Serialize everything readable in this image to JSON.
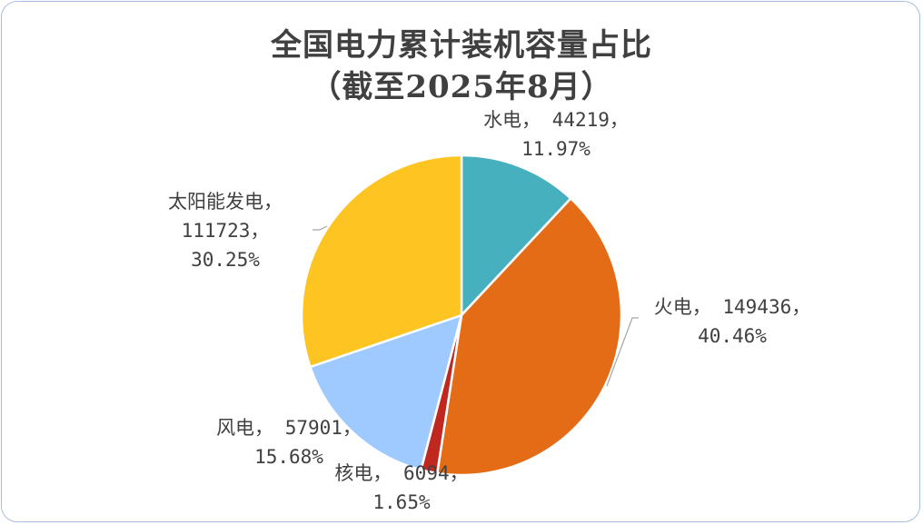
{
  "title_line1": "全国电力累计装机容量占比",
  "title_line2": "（截至2025年8月）",
  "chart_data": {
    "type": "pie",
    "title": "全国电力累计装机容量占比（截至2025年8月）",
    "unit": "",
    "slices": [
      {
        "label": "水电",
        "value": 44219,
        "percent": "11.97%",
        "color": "#46b0be"
      },
      {
        "label": "火电",
        "value": 149436,
        "percent": "40.46%",
        "color": "#e46c17"
      },
      {
        "label": "核电",
        "value": 6094,
        "percent": "1.65%",
        "color": "#c0271f"
      },
      {
        "label": "风电",
        "value": 57901,
        "percent": "15.68%",
        "color": "#9fcaff"
      },
      {
        "label": "太阳能发电",
        "value": 111723,
        "percent": "30.25%",
        "color": "#fec421"
      }
    ],
    "start_angle": "12 o'clock",
    "direction": "clockwise",
    "legend": "none",
    "data_labels": "category, value, percent"
  }
}
